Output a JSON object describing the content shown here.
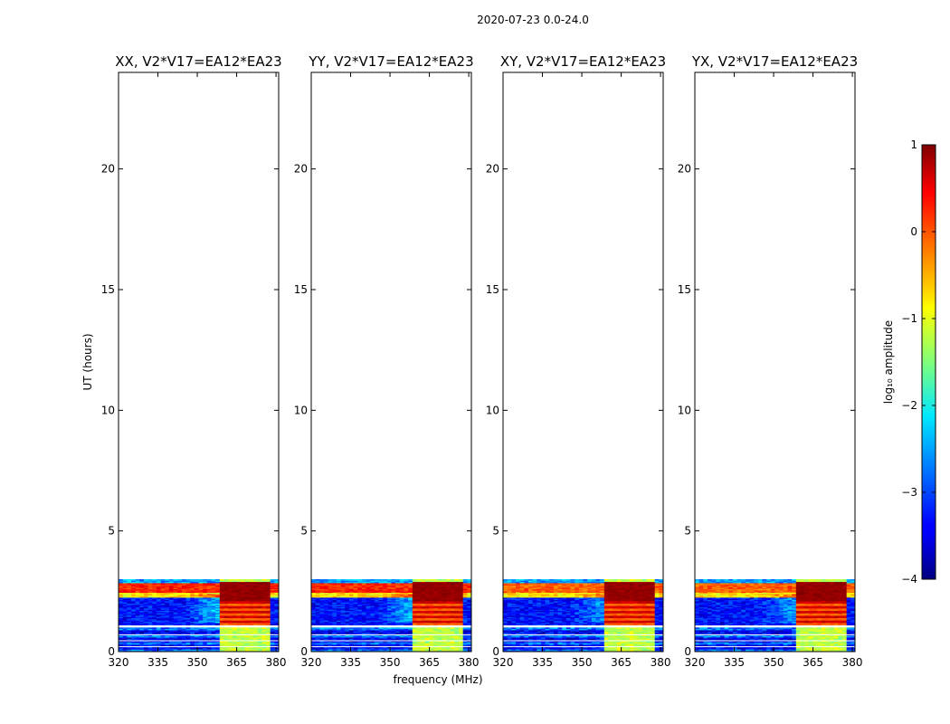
{
  "chart_data": {
    "type": "heatmap",
    "suptitle": "2020-07-23 0.0-24.0",
    "xlabel": "frequency (MHz)",
    "ylabel": "UT (hours)",
    "xlim": [
      320,
      381
    ],
    "ylim": [
      0,
      24
    ],
    "xticks": [
      320,
      335,
      350,
      365,
      380
    ],
    "yticks": [
      0,
      5,
      10,
      15,
      20
    ],
    "data_time_range_hours": [
      0,
      3
    ],
    "data_gap_hours": [
      1.0,
      1.1
    ],
    "rfi_band_mhz": [
      358,
      378
    ],
    "panels": [
      {
        "title": "XX, V2*V17=EA12*EA23",
        "polarization": "XX"
      },
      {
        "title": "YY, V2*V17=EA12*EA23",
        "polarization": "YY"
      },
      {
        "title": "XY, V2*V17=EA12*EA23",
        "polarization": "XY"
      },
      {
        "title": "YX, V2*V17=EA12*EA23",
        "polarization": "YX"
      }
    ],
    "colorbar": {
      "label": "log₁₀ amplitude",
      "colormap": "jet",
      "range": [
        -4,
        1
      ],
      "ticks": [
        "1",
        "0",
        "−1",
        "−2",
        "−3",
        "−4"
      ]
    }
  }
}
